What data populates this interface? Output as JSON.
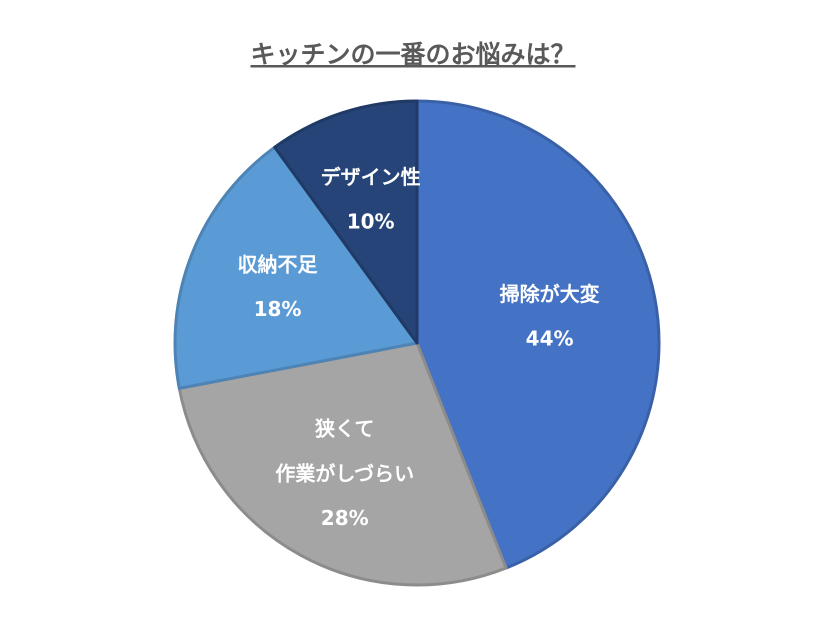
{
  "chart_data": {
    "type": "pie",
    "title": "キッチンの一番のお悩みは？",
    "categories": [
      "掃除が大変",
      "狭くて\n作業がしづらい",
      "収納不足",
      "デザイン性"
    ],
    "values": [
      44,
      28,
      18,
      10
    ],
    "value_labels": [
      "44%",
      "28%",
      "18%",
      "10%"
    ],
    "colors": [
      "#4472c4",
      "#a5a5a5",
      "#5b9bd5",
      "#264478"
    ]
  }
}
